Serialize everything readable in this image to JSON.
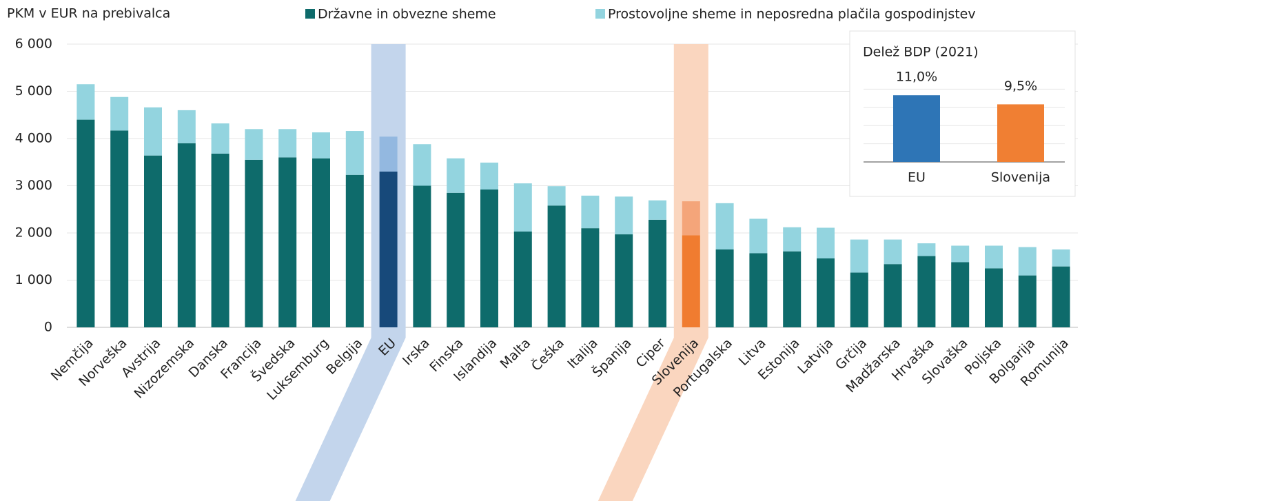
{
  "chart_data": [
    {
      "type": "stacked_bar",
      "y_label": "PKM v EUR na prebivalca",
      "categories": [
        "Nemčija",
        "Norveška",
        "Avstrija",
        "Nizozemska",
        "Danska",
        "Francija",
        "Švedska",
        "Luksemburg",
        "Belgija",
        "EU",
        "Irska",
        "Finska",
        "Islandija",
        "Malta",
        "Češka",
        "Italija",
        "Španija",
        "Ciper",
        "Slovenija",
        "Portugalska",
        "Litva",
        "Estonija",
        "Latvija",
        "Grčija",
        "Madžarska",
        "Hrvaška",
        "Slovaška",
        "Poljska",
        "Bolgarija",
        "Romunija"
      ],
      "series": [
        {
          "name": "Državne in obvezne sheme",
          "color": "#0e6b6b",
          "values": [
            4400,
            4170,
            3640,
            3900,
            3680,
            3550,
            3600,
            3580,
            3230,
            3300,
            3000,
            2850,
            2920,
            2030,
            2580,
            2100,
            1970,
            2280,
            1950,
            1650,
            1570,
            1610,
            1460,
            1160,
            1340,
            1510,
            1380,
            1250,
            1100,
            1290
          ],
          "colors": [
            null,
            null,
            null,
            null,
            null,
            null,
            null,
            null,
            null,
            "#17497a",
            null,
            null,
            null,
            null,
            null,
            null,
            null,
            null,
            "#f07c30",
            null,
            null,
            null,
            null,
            null,
            null,
            null,
            null,
            null,
            null,
            null
          ]
        },
        {
          "name": "Prostovoljne sheme in neposredna plačila gospodinjstev",
          "color": "#93d4df",
          "values": [
            750,
            710,
            1020,
            700,
            640,
            650,
            600,
            550,
            930,
            740,
            880,
            730,
            570,
            1020,
            410,
            690,
            800,
            410,
            720,
            980,
            730,
            510,
            650,
            700,
            520,
            270,
            350,
            480,
            600,
            360
          ],
          "colors": [
            null,
            null,
            null,
            null,
            null,
            null,
            null,
            null,
            null,
            "#93b8e0",
            null,
            null,
            null,
            null,
            null,
            null,
            null,
            null,
            "#f4a57a",
            null,
            null,
            null,
            null,
            null,
            null,
            null,
            null,
            null,
            null,
            null
          ]
        }
      ],
      "band_colors": [
        null,
        null,
        null,
        null,
        null,
        null,
        null,
        null,
        null,
        "#c3d5ec",
        null,
        null,
        null,
        null,
        null,
        null,
        null,
        null,
        "#fad6bf",
        null,
        null,
        null,
        null,
        null,
        null,
        null,
        null,
        null,
        null,
        null
      ],
      "ylim": [
        0,
        6000
      ],
      "yticks": [
        0,
        {
          "value": 1000,
          "label": "1 000"
        },
        {
          "value": 2000,
          "label": "2 000"
        },
        {
          "value": 3000,
          "label": "3 000"
        },
        {
          "value": 4000,
          "label": "4 000"
        },
        {
          "value": 5000,
          "label": "5 000"
        },
        {
          "value": 6000,
          "label": "6 000"
        }
      ],
      "grid": true
    },
    {
      "type": "bar",
      "title": "Delež BDP (2021)",
      "categories": [
        "EU",
        "Slovenija"
      ],
      "values": [
        11.0,
        9.5
      ],
      "value_labels": [
        "11,0%",
        "9,5%"
      ],
      "colors": [
        "#2e75b6",
        "#f07f33"
      ],
      "ylim": [
        0,
        12.5
      ],
      "yticks": [
        0,
        3,
        6,
        9,
        12
      ],
      "grid": true
    }
  ]
}
